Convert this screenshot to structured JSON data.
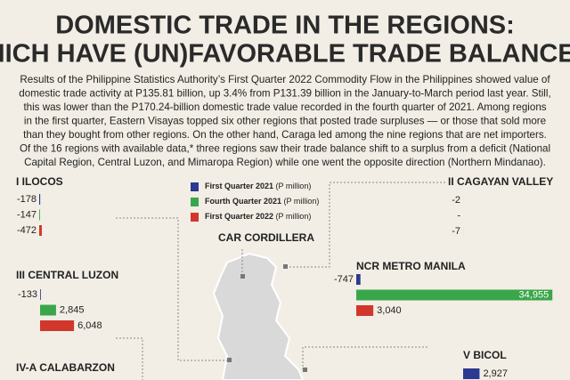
{
  "header": {
    "title_lines": [
      "DOMESTIC TRADE IN THE REGIONS:",
      "WHICH HAVE (UN)FAVORABLE TRADE BALANCES?"
    ]
  },
  "body": {
    "lines": [
      "Results of the Philippine Statistics Authority’s First Quarter 2022 Commodity Flow in the Philippines showed value of",
      "domestic trade activity at P135.81 billion, up 3.4% from P131.39 billion in the January-to-March period last year. Still,",
      "this was lower than the P170.24-billion domestic trade value recorded in the fourth quarter of 2021. Among regions",
      "in the first quarter, Eastern Visayas topped six other regions that posted trade surpluses — or those that sold more",
      "than they bought from other regions. On the other hand, Caraga led among the nine regions that are net importers.",
      "Of the 16 regions with available data,* three regions saw their trade balance shift to a surplus from a deficit (National",
      "Capital Region, Central Luzon, and Mimaropa Region) while one went the opposite direction (Northern Mindanao)."
    ]
  },
  "legend": [
    {
      "name": "First Quarter 2021",
      "unit": "(P million)",
      "color": "#2b3990"
    },
    {
      "name": "Fourth Quarter 2021",
      "unit": "(P million)",
      "color": "#3aa64a"
    },
    {
      "name": "First Quarter 2022",
      "unit": "(P million)",
      "color": "#d2372c"
    }
  ],
  "regions": [
    {
      "name": "I ILOCOS",
      "values": [
        -178,
        -147,
        -472
      ]
    },
    {
      "name": "III CENTRAL LUZON",
      "values": [
        -133,
        2845,
        6048
      ],
      "value_labels": [
        "-133",
        "2,845",
        "6,048"
      ]
    },
    {
      "name": "IV-A CALABARZON",
      "values": []
    },
    {
      "name": "II CAGAYAN VALLEY",
      "values": [
        -2,
        null,
        -7
      ],
      "value_labels": [
        "-2",
        "-",
        "-7"
      ]
    },
    {
      "name": "CAR CORDILLERA",
      "values": []
    },
    {
      "name": "NCR METRO MANILA",
      "values": [
        -747,
        34955,
        3040
      ],
      "value_labels": [
        "-747",
        "34,955",
        "3,040"
      ]
    },
    {
      "name": "V BICOL",
      "values": [
        2927
      ],
      "value_labels": [
        "2,927"
      ]
    }
  ]
}
